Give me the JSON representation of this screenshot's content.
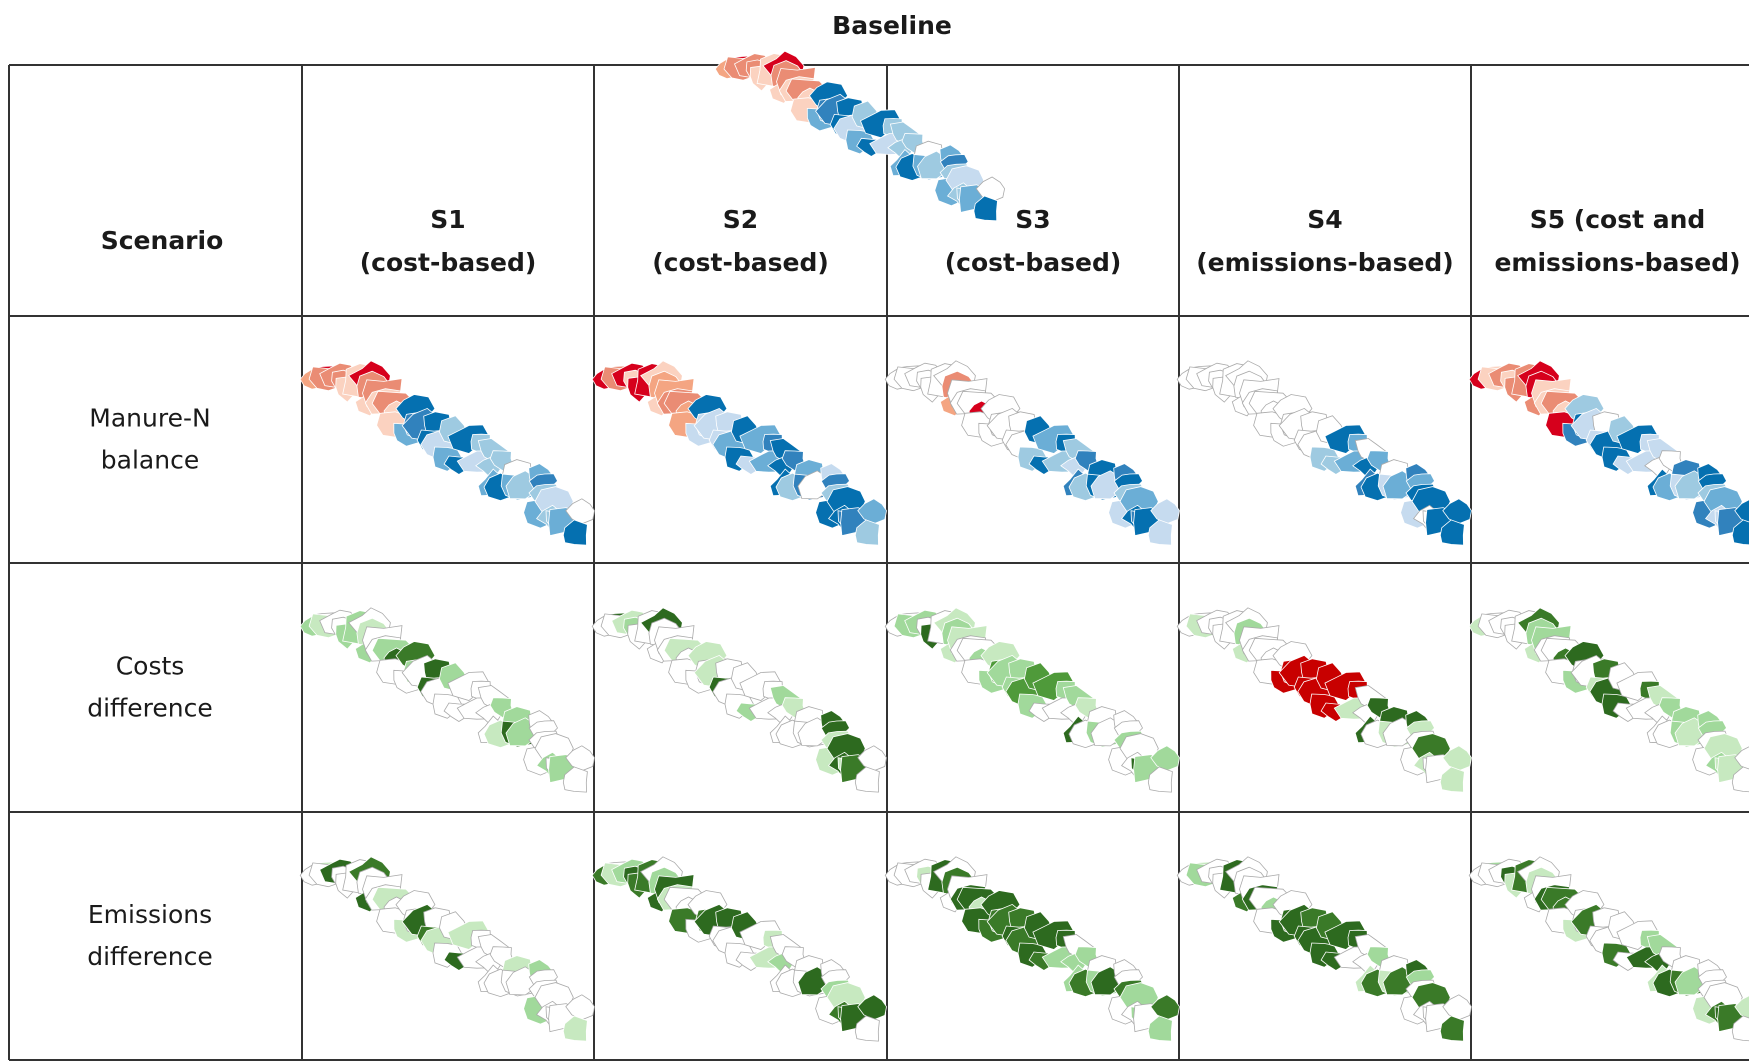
{
  "title": "Baseline",
  "table": {
    "corner": "Scenario",
    "columns": [
      [
        "S1",
        "(cost-based)"
      ],
      [
        "S2",
        "(cost-based)"
      ],
      [
        "S3",
        "(cost-based)"
      ],
      [
        "S4",
        "(emissions-based)"
      ],
      [
        "S5 (cost and",
        "emissions-based)"
      ]
    ],
    "rows": [
      [
        "Manure-N",
        "balance"
      ],
      [
        "Costs",
        "difference"
      ],
      [
        "Emissions",
        "difference"
      ]
    ]
  }
}
